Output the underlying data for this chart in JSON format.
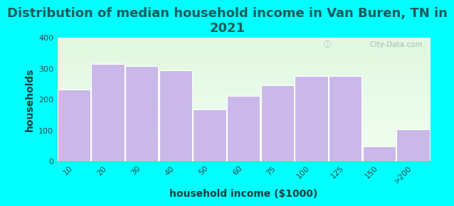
{
  "title": "Distribution of median household income in Van Buren, TN in\n2021",
  "xlabel": "household income ($1000)",
  "ylabel": "households",
  "categories": [
    "10",
    "20",
    "30",
    "40",
    "50",
    "60",
    "75",
    "100",
    "125",
    "150",
    ">200"
  ],
  "values": [
    232,
    315,
    308,
    295,
    168,
    212,
    247,
    277,
    275,
    48,
    103
  ],
  "bar_color": "#c9b8e8",
  "bar_edgecolor": "#c9b8e8",
  "background_color": "#00ffff",
  "ylim": [
    0,
    400
  ],
  "yticks": [
    0,
    100,
    200,
    300,
    400
  ],
  "title_fontsize": 13,
  "title_color": "#1a5a5a",
  "axis_label_fontsize": 10,
  "axis_label_color": "#1a3a3a",
  "tick_fontsize": 8,
  "tick_color": "#2a4a4a",
  "watermark_text": "City-Data.com"
}
